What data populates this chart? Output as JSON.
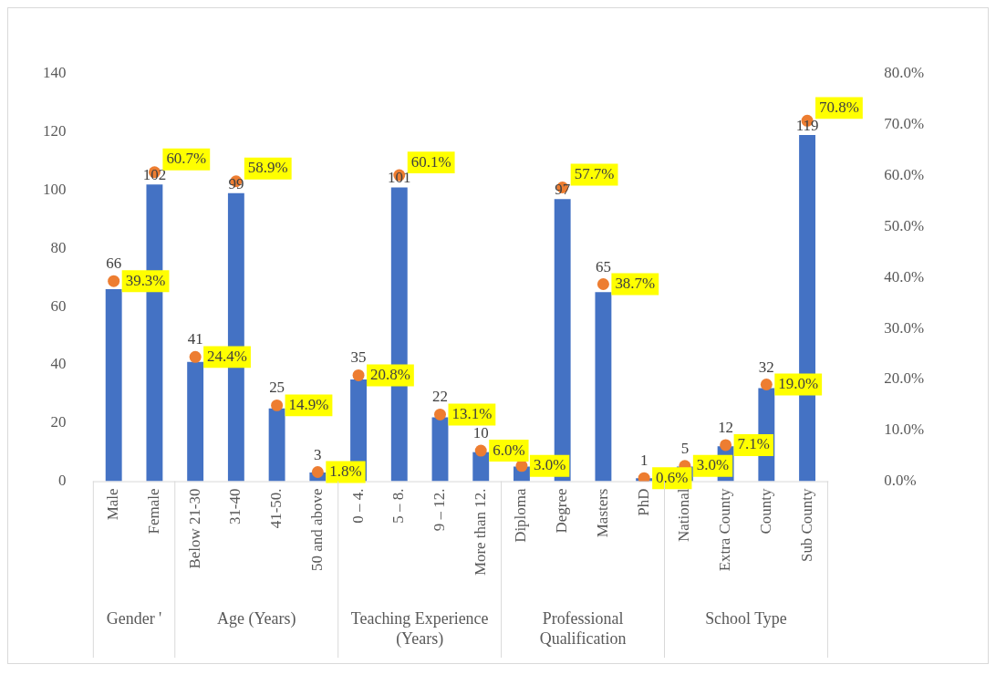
{
  "chart_data": {
    "type": "bar",
    "categories": [
      "Male",
      "Female",
      "Below 21-30",
      "31-40",
      "41-50.",
      "50 and above",
      "0 – 4.",
      "5 – 8.",
      "9 – 12.",
      "More than 12.",
      "Diploma",
      "Degree",
      "Masters",
      "PhD",
      "National",
      "Extra County",
      "County",
      "Sub County"
    ],
    "series": [
      {
        "color": "#4472c4",
        "values": [
          66,
          102,
          41,
          99,
          25,
          3,
          35,
          101,
          22,
          10,
          5,
          97,
          65,
          1,
          5,
          12,
          32,
          119
        ],
        "value_labels": [
          "66",
          "102",
          "41",
          "99",
          "25",
          "3",
          "35",
          "101",
          "22",
          "10",
          null,
          "97",
          "65",
          "1",
          "5",
          "12",
          "32",
          "119"
        ]
      },
      {
        "type": "scatter",
        "axis": "y2",
        "color": "#ed7d31",
        "values": [
          39.3,
          60.7,
          24.4,
          58.9,
          14.9,
          1.8,
          20.8,
          60.1,
          13.1,
          6.0,
          3.0,
          57.7,
          38.7,
          0.6,
          3.0,
          7.1,
          19.0,
          70.8
        ],
        "value_labels": [
          "39.3%",
          "60.7%",
          "24.4%",
          "58.9%",
          "14.9%",
          "1.8%",
          "20.8%",
          "60.1%",
          "13.1%",
          "6.0%",
          "3.0%",
          "57.7%",
          "38.7%",
          "0.6%",
          "3.0%",
          "7.1%",
          "19.0%",
          "70.8%"
        ]
      }
    ],
    "ylim": [
      0,
      140
    ],
    "yticks": [
      0,
      20,
      40,
      60,
      80,
      100,
      120,
      140
    ],
    "y2lim": [
      0,
      80
    ],
    "y2ticks": [
      {
        "value": 0,
        "label": "0.0%"
      },
      {
        "value": 10,
        "label": "10.0%"
      },
      {
        "value": 20,
        "label": "20.0%"
      },
      {
        "value": 30,
        "label": "30.0%"
      },
      {
        "value": 40,
        "label": "40.0%"
      },
      {
        "value": 50,
        "label": "50.0%"
      },
      {
        "value": 60,
        "label": "60.0%"
      },
      {
        "value": 70,
        "label": "70.0%"
      },
      {
        "value": 80,
        "label": "80.0%"
      }
    ],
    "marker": "circle",
    "grid": false,
    "annotations": [
      "Gender '",
      "Age (Years)",
      "Teaching Experience (Years)",
      "Professional Qualification",
      "School Type"
    ]
  }
}
